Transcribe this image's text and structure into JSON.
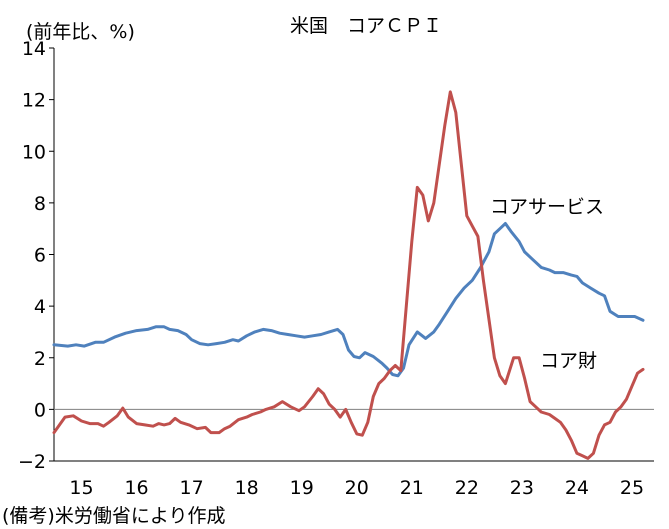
{
  "chart_data": {
    "type": "line",
    "title": "米国　コアＣＰＩ",
    "ylabel": "(前年比、%)",
    "note": "(備考)米労働省により作成",
    "xlim": [
      2015.0,
      2025.9
    ],
    "ylim": [
      -2,
      14
    ],
    "yticks": [
      14,
      12,
      10,
      8,
      6,
      4,
      2,
      0,
      -2
    ],
    "ytick_labels": [
      "14",
      "12",
      "10",
      "8",
      "6",
      "4",
      "2",
      "0",
      "−2"
    ],
    "xticks": [
      2015,
      2016,
      2017,
      2018,
      2019,
      2020,
      2021,
      2022,
      2023,
      2024,
      2025
    ],
    "xtick_labels": [
      "15",
      "16",
      "17",
      "18",
      "19",
      "20",
      "21",
      "22",
      "23",
      "24",
      "25"
    ],
    "grid": false,
    "series": [
      {
        "name": "コアサービス",
        "color": "#4f81bd",
        "points": [
          [
            2015.0,
            2.5
          ],
          [
            2015.25,
            2.45
          ],
          [
            2015.4,
            2.5
          ],
          [
            2015.55,
            2.45
          ],
          [
            2015.75,
            2.6
          ],
          [
            2015.9,
            2.6
          ],
          [
            2016.1,
            2.8
          ],
          [
            2016.3,
            2.95
          ],
          [
            2016.5,
            3.05
          ],
          [
            2016.7,
            3.1
          ],
          [
            2016.85,
            3.2
          ],
          [
            2017.0,
            3.2
          ],
          [
            2017.1,
            3.1
          ],
          [
            2017.25,
            3.05
          ],
          [
            2017.4,
            2.9
          ],
          [
            2017.5,
            2.7
          ],
          [
            2017.65,
            2.55
          ],
          [
            2017.8,
            2.5
          ],
          [
            2017.95,
            2.55
          ],
          [
            2018.1,
            2.6
          ],
          [
            2018.25,
            2.7
          ],
          [
            2018.35,
            2.65
          ],
          [
            2018.5,
            2.85
          ],
          [
            2018.65,
            3.0
          ],
          [
            2018.8,
            3.1
          ],
          [
            2018.95,
            3.05
          ],
          [
            2019.1,
            2.95
          ],
          [
            2019.25,
            2.9
          ],
          [
            2019.4,
            2.85
          ],
          [
            2019.55,
            2.8
          ],
          [
            2019.7,
            2.85
          ],
          [
            2019.85,
            2.9
          ],
          [
            2020.0,
            3.0
          ],
          [
            2020.15,
            3.1
          ],
          [
            2020.25,
            2.9
          ],
          [
            2020.35,
            2.3
          ],
          [
            2020.45,
            2.05
          ],
          [
            2020.55,
            2.0
          ],
          [
            2020.65,
            2.2
          ],
          [
            2020.8,
            2.05
          ],
          [
            2020.95,
            1.8
          ],
          [
            2021.05,
            1.6
          ],
          [
            2021.15,
            1.35
          ],
          [
            2021.25,
            1.3
          ],
          [
            2021.35,
            1.6
          ],
          [
            2021.45,
            2.5
          ],
          [
            2021.6,
            3.0
          ],
          [
            2021.75,
            2.75
          ],
          [
            2021.9,
            3.0
          ],
          [
            2022.0,
            3.3
          ],
          [
            2022.15,
            3.8
          ],
          [
            2022.3,
            4.3
          ],
          [
            2022.45,
            4.7
          ],
          [
            2022.6,
            5.0
          ],
          [
            2022.75,
            5.5
          ],
          [
            2022.9,
            6.1
          ],
          [
            2023.0,
            6.8
          ],
          [
            2023.1,
            7.0
          ],
          [
            2023.2,
            7.2
          ],
          [
            2023.3,
            6.9
          ],
          [
            2023.45,
            6.5
          ],
          [
            2023.55,
            6.1
          ],
          [
            2023.7,
            5.8
          ],
          [
            2023.85,
            5.5
          ],
          [
            2024.0,
            5.4
          ],
          [
            2024.1,
            5.3
          ],
          [
            2024.25,
            5.3
          ],
          [
            2024.4,
            5.2
          ],
          [
            2024.5,
            5.15
          ],
          [
            2024.6,
            4.9
          ],
          [
            2024.75,
            4.7
          ],
          [
            2024.9,
            4.5
          ],
          [
            2025.0,
            4.4
          ],
          [
            2025.1,
            3.8
          ],
          [
            2025.25,
            3.6
          ],
          [
            2025.4,
            3.6
          ],
          [
            2025.55,
            3.6
          ],
          [
            2025.7,
            3.45
          ]
        ]
      },
      {
        "name": "コア財",
        "color": "#c0504d",
        "points": [
          [
            2015.0,
            -0.9
          ],
          [
            2015.1,
            -0.6
          ],
          [
            2015.2,
            -0.3
          ],
          [
            2015.35,
            -0.25
          ],
          [
            2015.5,
            -0.45
          ],
          [
            2015.65,
            -0.55
          ],
          [
            2015.8,
            -0.55
          ],
          [
            2015.9,
            -0.65
          ],
          [
            2016.0,
            -0.5
          ],
          [
            2016.15,
            -0.25
          ],
          [
            2016.25,
            0.05
          ],
          [
            2016.35,
            -0.3
          ],
          [
            2016.5,
            -0.55
          ],
          [
            2016.65,
            -0.6
          ],
          [
            2016.8,
            -0.65
          ],
          [
            2016.9,
            -0.55
          ],
          [
            2017.0,
            -0.6
          ],
          [
            2017.1,
            -0.55
          ],
          [
            2017.2,
            -0.35
          ],
          [
            2017.3,
            -0.5
          ],
          [
            2017.45,
            -0.6
          ],
          [
            2017.6,
            -0.75
          ],
          [
            2017.75,
            -0.7
          ],
          [
            2017.85,
            -0.9
          ],
          [
            2018.0,
            -0.9
          ],
          [
            2018.1,
            -0.75
          ],
          [
            2018.2,
            -0.65
          ],
          [
            2018.35,
            -0.4
          ],
          [
            2018.5,
            -0.3
          ],
          [
            2018.6,
            -0.2
          ],
          [
            2018.75,
            -0.1
          ],
          [
            2018.85,
            0.0
          ],
          [
            2019.0,
            0.1
          ],
          [
            2019.15,
            0.3
          ],
          [
            2019.3,
            0.1
          ],
          [
            2019.45,
            -0.05
          ],
          [
            2019.55,
            0.1
          ],
          [
            2019.7,
            0.5
          ],
          [
            2019.8,
            0.8
          ],
          [
            2019.9,
            0.6
          ],
          [
            2020.0,
            0.2
          ],
          [
            2020.1,
            0.0
          ],
          [
            2020.2,
            -0.3
          ],
          [
            2020.3,
            0.0
          ],
          [
            2020.4,
            -0.5
          ],
          [
            2020.5,
            -0.95
          ],
          [
            2020.6,
            -1.0
          ],
          [
            2020.7,
            -0.5
          ],
          [
            2020.8,
            0.5
          ],
          [
            2020.9,
            1.0
          ],
          [
            2021.0,
            1.2
          ],
          [
            2021.1,
            1.5
          ],
          [
            2021.2,
            1.7
          ],
          [
            2021.3,
            1.5
          ],
          [
            2021.4,
            4.0
          ],
          [
            2021.5,
            6.5
          ],
          [
            2021.6,
            8.6
          ],
          [
            2021.7,
            8.3
          ],
          [
            2021.8,
            7.3
          ],
          [
            2021.9,
            8.0
          ],
          [
            2022.0,
            9.5
          ],
          [
            2022.1,
            11.0
          ],
          [
            2022.2,
            12.3
          ],
          [
            2022.3,
            11.5
          ],
          [
            2022.4,
            9.5
          ],
          [
            2022.5,
            7.5
          ],
          [
            2022.6,
            7.1
          ],
          [
            2022.7,
            6.7
          ],
          [
            2022.8,
            5.0
          ],
          [
            2022.9,
            3.5
          ],
          [
            2023.0,
            2.0
          ],
          [
            2023.1,
            1.3
          ],
          [
            2023.2,
            1.0
          ],
          [
            2023.35,
            2.0
          ],
          [
            2023.45,
            2.0
          ],
          [
            2023.55,
            1.2
          ],
          [
            2023.65,
            0.3
          ],
          [
            2023.75,
            0.1
          ],
          [
            2023.85,
            -0.1
          ],
          [
            2024.0,
            -0.2
          ],
          [
            2024.1,
            -0.35
          ],
          [
            2024.2,
            -0.5
          ],
          [
            2024.3,
            -0.8
          ],
          [
            2024.4,
            -1.2
          ],
          [
            2024.5,
            -1.7
          ],
          [
            2024.6,
            -1.8
          ],
          [
            2024.7,
            -1.9
          ],
          [
            2024.8,
            -1.7
          ],
          [
            2024.9,
            -1.0
          ],
          [
            2025.0,
            -0.6
          ],
          [
            2025.1,
            -0.5
          ],
          [
            2025.2,
            -0.1
          ],
          [
            2025.3,
            0.1
          ],
          [
            2025.4,
            0.4
          ],
          [
            2025.5,
            0.9
          ],
          [
            2025.6,
            1.4
          ],
          [
            2025.7,
            1.55
          ]
        ]
      }
    ]
  }
}
